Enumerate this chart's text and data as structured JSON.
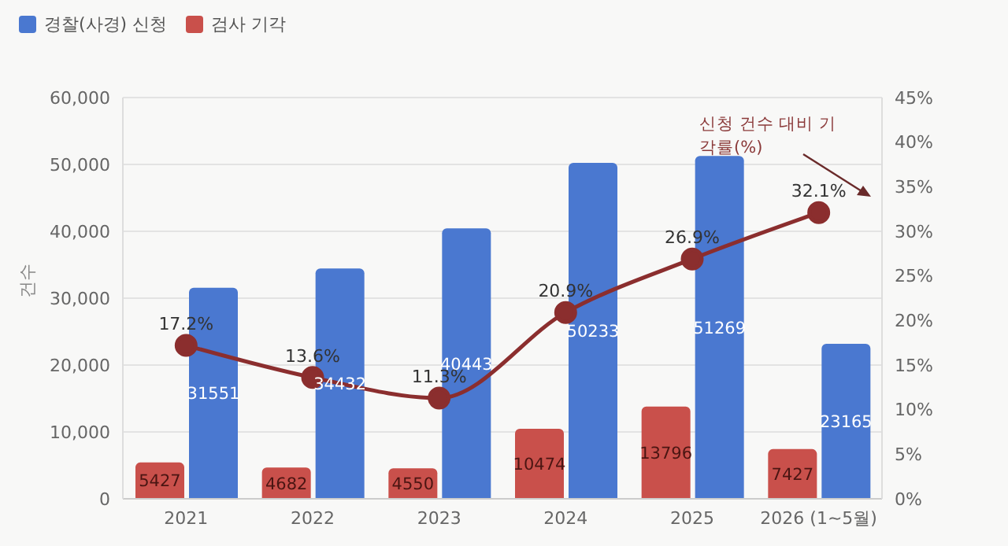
{
  "chart_data": {
    "type": "bar",
    "categories": [
      "2021",
      "2022",
      "2023",
      "2024",
      "2025",
      "2026 (1~5월)"
    ],
    "series": [
      {
        "name": "경찰(사경) 신청",
        "color": "#4a78d0",
        "values": [
          31551,
          34432,
          40443,
          50233,
          51269,
          23165
        ]
      },
      {
        "name": "검사 기각",
        "color": "#c9504b",
        "values": [
          5427,
          4682,
          4550,
          10474,
          13796,
          7427
        ]
      },
      {
        "type": "line",
        "axis": "y2",
        "color": "#8b2e2e",
        "values": [
          17.2,
          13.6,
          11.3,
          20.9,
          26.9,
          32.1
        ],
        "value_labels": [
          "17.2%",
          "13.6%",
          "11.3%",
          "20.9%",
          "26.9%",
          "32.1%"
        ]
      }
    ],
    "ylabel": "건수",
    "ylim": [
      0,
      60000
    ],
    "yticks": [
      0,
      {
        "value": 10000,
        "label": "10,000"
      },
      {
        "value": 20000,
        "label": "20,000"
      },
      {
        "value": 30000,
        "label": "30,000"
      },
      {
        "value": 40000,
        "label": "40,000"
      },
      {
        "value": 50000,
        "label": "50,000"
      },
      {
        "value": 60000,
        "label": "60,000"
      }
    ],
    "y2lim": [
      0,
      45
    ],
    "y2ticks": [
      {
        "value": 0,
        "label": "0%"
      },
      {
        "value": 5,
        "label": "5%"
      },
      {
        "value": 10,
        "label": "10%"
      },
      {
        "value": 15,
        "label": "15%"
      },
      {
        "value": 20,
        "label": "20%"
      },
      {
        "value": 25,
        "label": "25%"
      },
      {
        "value": 30,
        "label": "30%"
      },
      {
        "value": 35,
        "label": "35%"
      },
      {
        "value": 40,
        "label": "40%"
      },
      {
        "value": 45,
        "label": "45%"
      }
    ],
    "annotations": [
      "신청 건수 대비 기각률(%)"
    ],
    "data_labels": true,
    "grid": "y",
    "legend": "top left",
    "marker": "circle"
  }
}
